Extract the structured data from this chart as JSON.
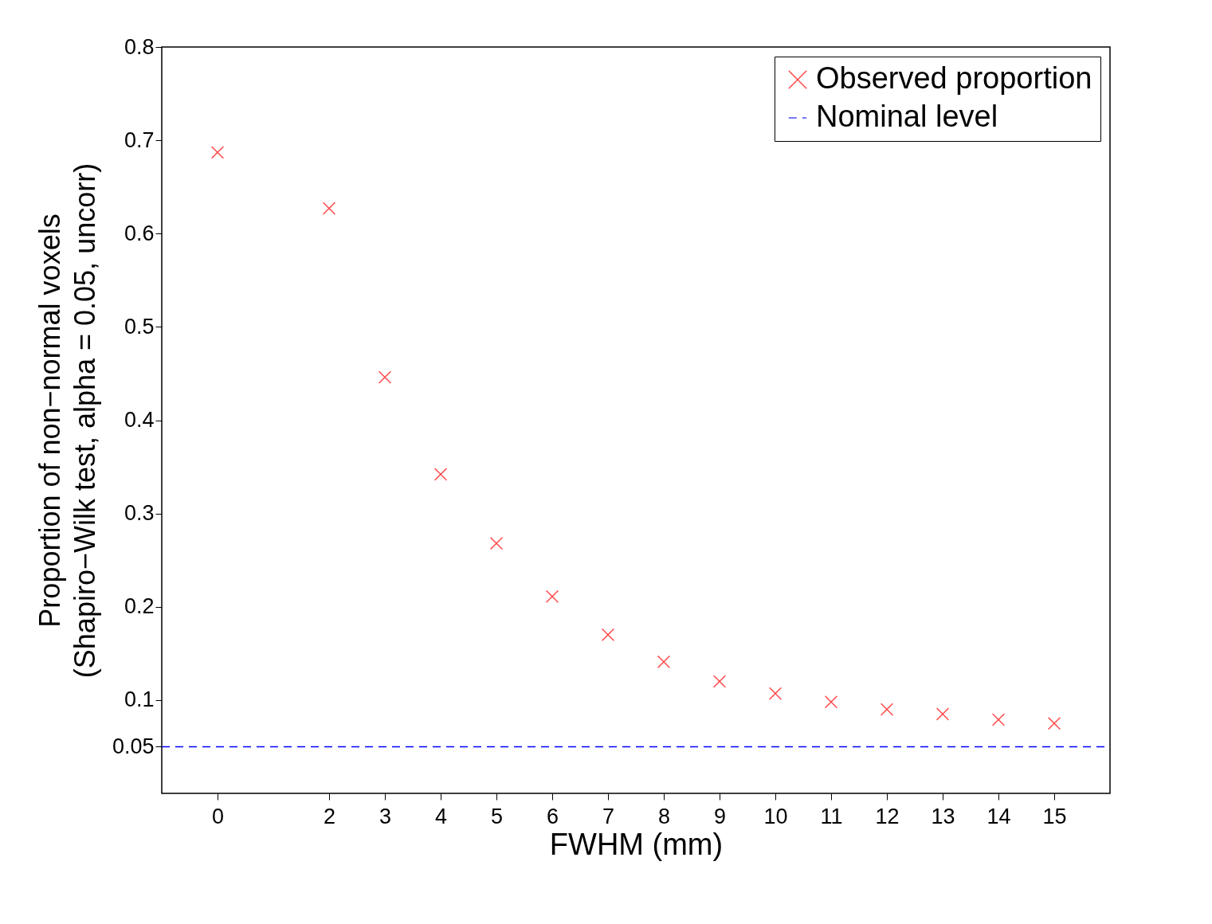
{
  "chart_data": {
    "type": "scatter",
    "xlabel": "FWHM (mm)",
    "ylabel": "Proportion of non−normal voxels\n(Shapiro−Wilk test, alpha = 0.05, uncorr)",
    "xlim": [
      -1,
      16
    ],
    "xticks": [
      0,
      2,
      3,
      4,
      5,
      6,
      7,
      8,
      9,
      10,
      11,
      12,
      13,
      14,
      15
    ],
    "ylim": [
      0,
      0.8
    ],
    "yticks": [
      0.05,
      0.1,
      0.2,
      0.3,
      0.4,
      0.5,
      0.6,
      0.7,
      0.8
    ],
    "grid": false,
    "legend": "top right",
    "series": [
      {
        "name": "Observed proportion",
        "marker": "cross",
        "color": "#ff0000",
        "x": [
          0,
          2,
          3,
          4,
          5,
          6,
          7,
          8,
          9,
          10,
          11,
          12,
          13,
          14,
          15
        ],
        "values": [
          0.687,
          0.627,
          0.446,
          0.342,
          0.268,
          0.211,
          0.17,
          0.141,
          0.12,
          0.107,
          0.098,
          0.09,
          0.085,
          0.079,
          0.075
        ]
      },
      {
        "name": "Nominal level",
        "type": "line",
        "line_style": "dashed",
        "color": "#0000ff",
        "x": [
          -1,
          16
        ],
        "values": [
          0.05,
          0.05
        ]
      }
    ]
  }
}
